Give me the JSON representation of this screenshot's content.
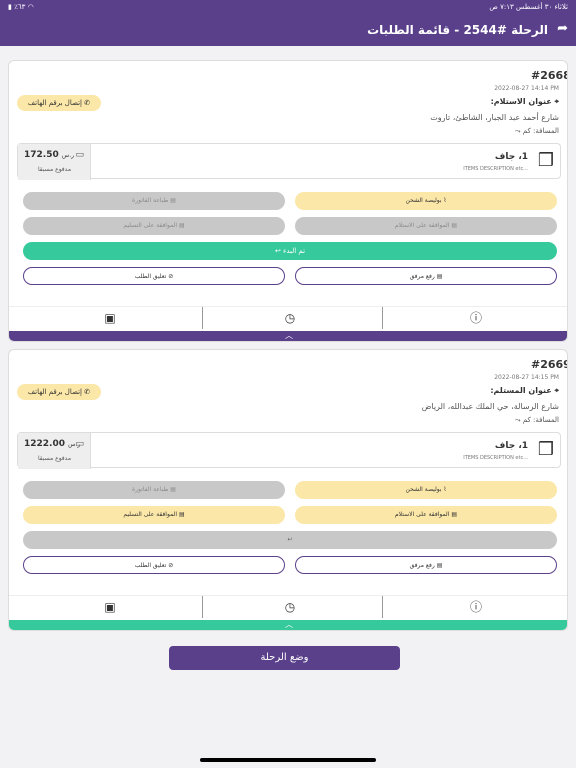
{
  "status_bar": {
    "time": "٧:١٣ ص",
    "date": "ثلاثاء ٣٠ أغسطس",
    "battery": "٪٦٣"
  },
  "header": {
    "title": "الرحلة #2544 - قائمة الطلبات",
    "back_icon": "share-icon"
  },
  "orders": [
    {
      "id": "#2668",
      "date": "2022-08-27 14:14 PM",
      "address_label": "عنوان الاستلام:",
      "address": "شارع أحمد عبد الجبار، الشاطئ، تاروت",
      "distance_label": "المسافة: كم",
      "call_label": "إتصال برقم الهاتف",
      "goods_title": "1، جاف",
      "goods_desc": "ITEMS DESCRIPTION etc...",
      "price": "172.50",
      "currency": "ر.س",
      "paid": "مدفوع مسبقا",
      "btn_waybill": "بوليصة الشحن",
      "btn_print": "طباعة الفاتورة",
      "btn_accept_pickup": "الموافقة على الاستلام",
      "btn_accept_delivery": "الموافقة على التسليم",
      "btn_start": "تم البدء",
      "btn_upload": "رفع مرفق",
      "btn_suspend": "تعليق الطلب",
      "expander_color": "#5a3f8b"
    },
    {
      "id": "#2669",
      "date": "2022-08-27 14:15 PM",
      "address_label": "عنوان المستلم:",
      "address": "شارع الرسالة، حي الملك عبدالله، الرياض",
      "distance_label": "المسافة: كم",
      "call_label": "إتصال برقم الهاتف",
      "goods_title": "1، جاف",
      "goods_desc": "ITEMS DESCRIPTION etc...",
      "price": "1222.00",
      "currency": "ر.س",
      "paid": "مدفوع مسبقا",
      "btn_waybill": "بوليصة الشحن",
      "btn_print": "طباعة الفاتورة",
      "btn_accept_pickup": "الموافقة على الاستلام",
      "btn_accept_delivery": "الموافقة على التسليم",
      "btn_start": "",
      "btn_upload": "رفع مرفق",
      "btn_suspend": "تعليق الطلب",
      "expander_color": "#36c99b"
    }
  ],
  "trip_button": "وضع الرحلة",
  "colors": {
    "primary": "#5a3f8b",
    "green": "#36c99b",
    "yellow": "#fbe7a8",
    "grey": "#c8c8c8"
  }
}
